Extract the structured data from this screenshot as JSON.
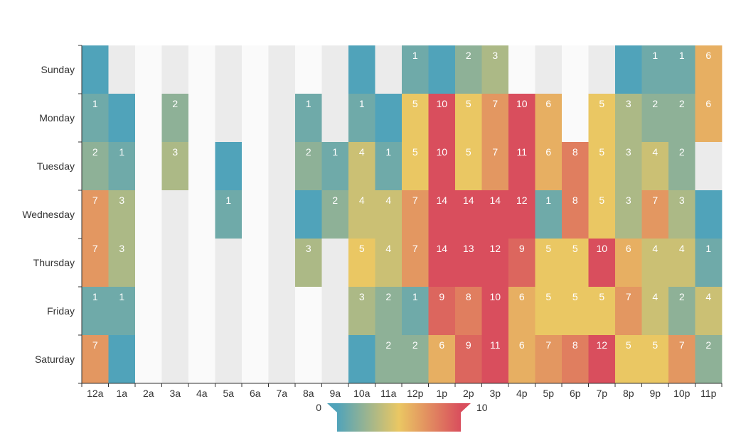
{
  "chart_data": {
    "type": "heatmap",
    "title": "",
    "x_categories": [
      "12a",
      "1a",
      "2a",
      "3a",
      "4a",
      "5a",
      "6a",
      "7a",
      "8a",
      "9a",
      "10a",
      "11a",
      "12p",
      "1p",
      "2p",
      "3p",
      "4p",
      "5p",
      "6p",
      "7p",
      "8p",
      "9p",
      "10p",
      "11p"
    ],
    "y_categories": [
      "Sunday",
      "Monday",
      "Tuesday",
      "Wednesday",
      "Thursday",
      "Friday",
      "Saturday"
    ],
    "values": [
      [
        0,
        null,
        null,
        null,
        null,
        null,
        null,
        null,
        null,
        null,
        0,
        null,
        1,
        0,
        2,
        3,
        null,
        null,
        null,
        null,
        0,
        1,
        1,
        6
      ],
      [
        1,
        0,
        null,
        2,
        null,
        null,
        null,
        null,
        1,
        null,
        1,
        0,
        5,
        10,
        5,
        7,
        10,
        6,
        null,
        5,
        3,
        2,
        2,
        6
      ],
      [
        2,
        1,
        null,
        3,
        null,
        0,
        null,
        null,
        2,
        1,
        4,
        1,
        5,
        10,
        5,
        7,
        11,
        6,
        8,
        5,
        3,
        4,
        2,
        null
      ],
      [
        7,
        3,
        null,
        null,
        null,
        1,
        null,
        null,
        0,
        2,
        4,
        4,
        7,
        14,
        14,
        14,
        12,
        1,
        8,
        5,
        3,
        7,
        3,
        0
      ],
      [
        7,
        3,
        null,
        null,
        null,
        null,
        null,
        null,
        3,
        null,
        5,
        4,
        7,
        14,
        13,
        12,
        9,
        5,
        5,
        10,
        6,
        4,
        4,
        1
      ],
      [
        1,
        1,
        null,
        null,
        null,
        null,
        null,
        null,
        null,
        null,
        3,
        2,
        1,
        9,
        8,
        10,
        6,
        5,
        5,
        5,
        7,
        4,
        2,
        4
      ],
      [
        7,
        0,
        null,
        null,
        null,
        null,
        null,
        null,
        null,
        null,
        0,
        2,
        2,
        6,
        9,
        11,
        6,
        7,
        8,
        12,
        5,
        5,
        7,
        2
      ]
    ],
    "visual_map": {
      "min": 0,
      "max": 10,
      "min_label": "0",
      "max_label": "10",
      "colors": [
        "#50a3ba",
        "#eac763",
        "#d94e5d"
      ]
    },
    "empty_colors": [
      "#fafafa",
      "#ebebeb"
    ],
    "label_color": "#ffffff",
    "axis_color": "#333333"
  }
}
